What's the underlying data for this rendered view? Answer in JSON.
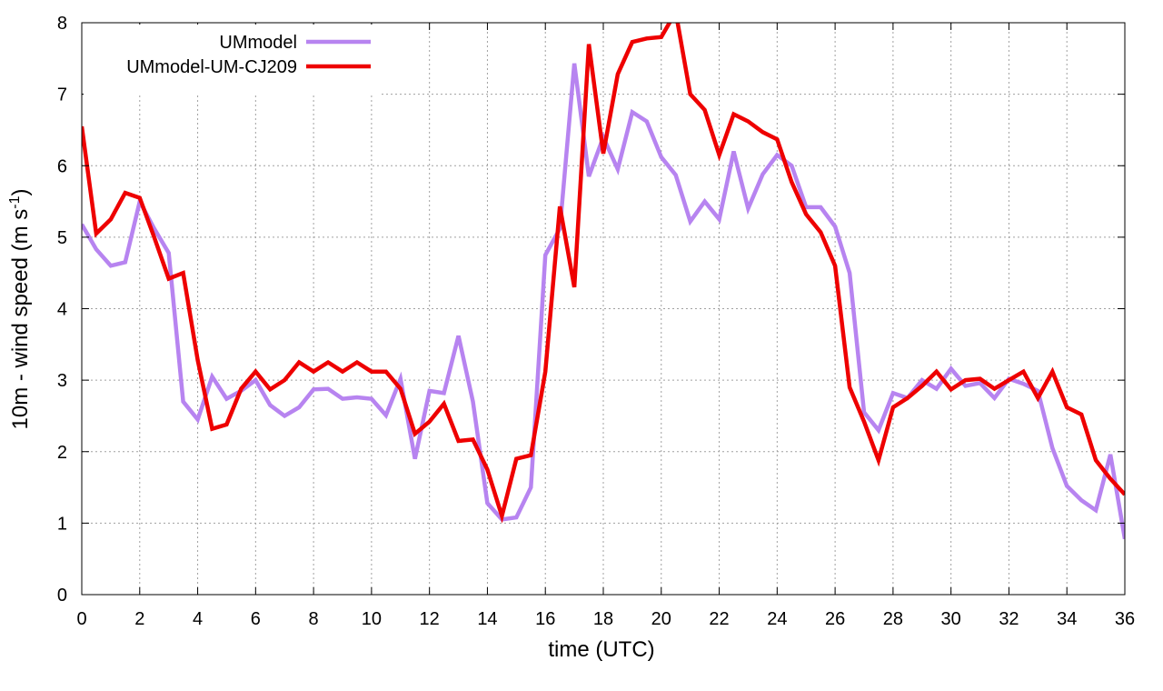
{
  "chart_data": {
    "type": "line",
    "title": "",
    "xlabel": "time (UTC)",
    "ylabel_main": "10m - wind speed  (m s",
    "ylabel_sup": "-1",
    "ylabel_close": ")",
    "xlim": [
      0,
      36
    ],
    "ylim": [
      0,
      8
    ],
    "xticks": [
      "0",
      "2",
      "4",
      "6",
      "8",
      "10",
      "12",
      "14",
      "16",
      "18",
      "20",
      "22",
      "24",
      "26",
      "28",
      "30",
      "32",
      "34",
      "36"
    ],
    "yticks": [
      "0",
      "1",
      "2",
      "3",
      "4",
      "5",
      "6",
      "7",
      "8"
    ],
    "grid": true,
    "legend_position": "top-left",
    "x": [
      0,
      0.5,
      1,
      1.5,
      2,
      2.5,
      3,
      3.5,
      4,
      4.5,
      5,
      5.5,
      6,
      6.5,
      7,
      7.5,
      8,
      8.5,
      9,
      9.5,
      10,
      10.5,
      11,
      11.5,
      12,
      12.5,
      13,
      13.5,
      14,
      14.5,
      15,
      15.5,
      16,
      16.5,
      17,
      17.5,
      18,
      18.5,
      19,
      19.5,
      20,
      20.5,
      21,
      21.5,
      22,
      22.5,
      23,
      23.5,
      24,
      24.5,
      25,
      25.5,
      26,
      26.5,
      27,
      27.5,
      28,
      28.5,
      29,
      29.5,
      30,
      30.5,
      31,
      31.5,
      32,
      32.5,
      33,
      33.5,
      34,
      34.5,
      35,
      35.5,
      36
    ],
    "series": [
      {
        "name": "UMmodel",
        "color": "#b784f0",
        "values": [
          5.18,
          4.83,
          4.6,
          4.65,
          5.5,
          5.12,
          4.78,
          2.7,
          2.45,
          3.05,
          2.74,
          2.85,
          3.0,
          2.65,
          2.5,
          2.62,
          2.87,
          2.88,
          2.74,
          2.76,
          2.74,
          2.51,
          3.02,
          1.9,
          2.85,
          2.82,
          3.62,
          2.7,
          1.28,
          1.05,
          1.08,
          1.5,
          4.75,
          5.12,
          7.43,
          5.85,
          6.4,
          5.95,
          6.75,
          6.62,
          6.12,
          5.87,
          5.22,
          5.5,
          5.25,
          6.2,
          5.4,
          5.88,
          6.15,
          6.0,
          5.42,
          5.42,
          5.15,
          4.5,
          2.55,
          2.3,
          2.82,
          2.75,
          3.0,
          2.88,
          3.16,
          2.92,
          2.96,
          2.75,
          3.02,
          2.95,
          2.85,
          2.05,
          1.52,
          1.32,
          1.18,
          1.96,
          0.78
        ]
      },
      {
        "name": "UMmodel-UM-CJ209",
        "color": "#ee0000",
        "values": [
          6.55,
          5.05,
          5.25,
          5.62,
          5.55,
          5.0,
          4.42,
          4.5,
          3.28,
          2.32,
          2.38,
          2.88,
          3.12,
          2.87,
          3.0,
          3.25,
          3.12,
          3.25,
          3.12,
          3.25,
          3.12,
          3.12,
          2.88,
          2.25,
          2.42,
          2.67,
          2.15,
          2.17,
          1.75,
          1.1,
          1.9,
          1.95,
          3.12,
          5.43,
          4.3,
          7.7,
          6.17,
          7.28,
          7.73,
          7.78,
          7.8,
          8.15,
          7.0,
          6.78,
          6.15,
          6.72,
          6.62,
          6.47,
          6.37,
          5.77,
          5.32,
          5.07,
          4.6,
          2.9,
          2.42,
          1.88,
          2.62,
          2.75,
          2.92,
          3.12,
          2.87,
          3.0,
          3.02,
          2.88,
          3.0,
          3.12,
          2.75,
          3.12,
          2.62,
          2.52,
          1.88,
          1.62,
          1.4
        ]
      }
    ]
  }
}
